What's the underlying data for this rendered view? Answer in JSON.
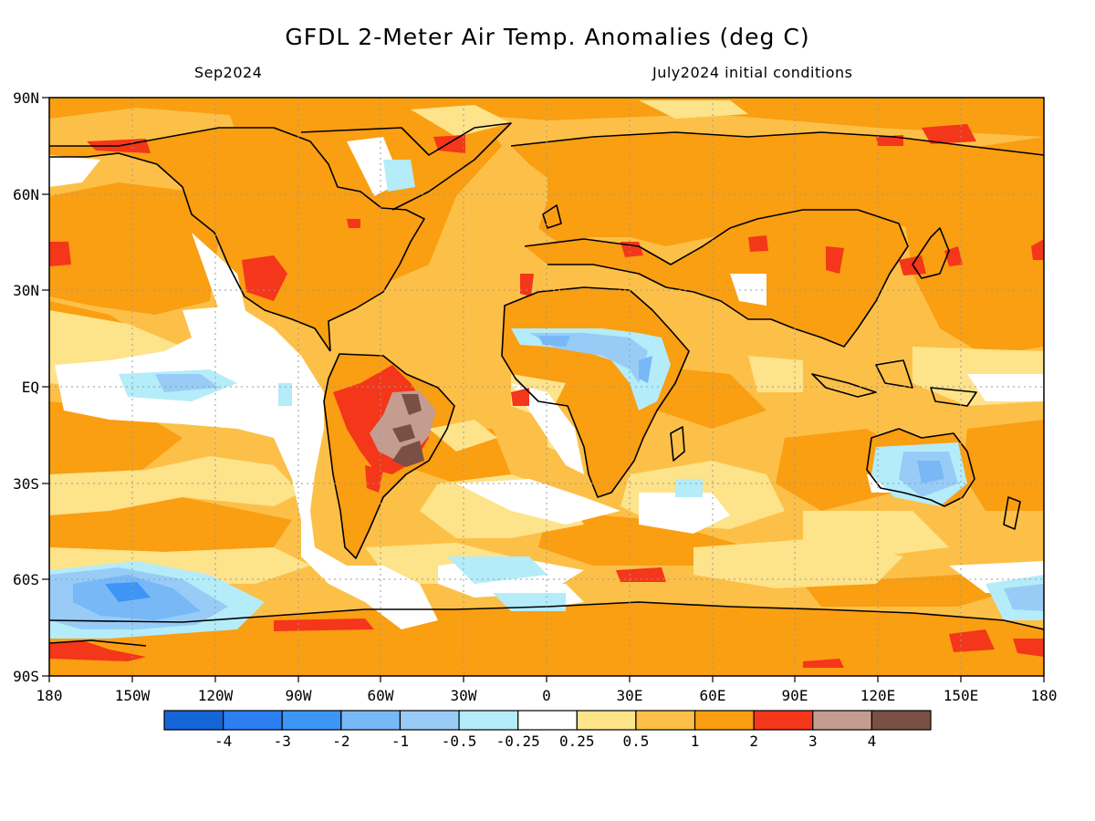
{
  "title": "GFDL 2-Meter Air Temp. Anomalies (deg C)",
  "subtitle_left": "Sep2024",
  "subtitle_right": "July2024 initial conditions",
  "axes": {
    "lat_labels": [
      "90N",
      "60N",
      "30N",
      "EQ",
      "30S",
      "60S",
      "90S"
    ],
    "lon_labels": [
      "180",
      "150W",
      "120W",
      "90W",
      "60W",
      "30W",
      "0",
      "30E",
      "60E",
      "90E",
      "120E",
      "150E",
      "180"
    ]
  },
  "colorbar": {
    "colors": [
      "#1565d6",
      "#2b7ff0",
      "#3d95f5",
      "#78b8f7",
      "#98ccf7",
      "#b4ecfa",
      "#ffffff",
      "#fde38a",
      "#fcc048",
      "#fa9e12",
      "#f4361a",
      "#c49c90",
      "#7a4f44"
    ],
    "labels": [
      "-4",
      "-3",
      "-2",
      "-1",
      "-0.5",
      "-0.25",
      "0.25",
      "0.5",
      "1",
      "2",
      "3",
      "4"
    ]
  },
  "colors": {
    "ocean_base": "#fcc048",
    "land_base": "#fa9e12",
    "coast": "#000000",
    "grid": "#9a9a9a"
  }
}
